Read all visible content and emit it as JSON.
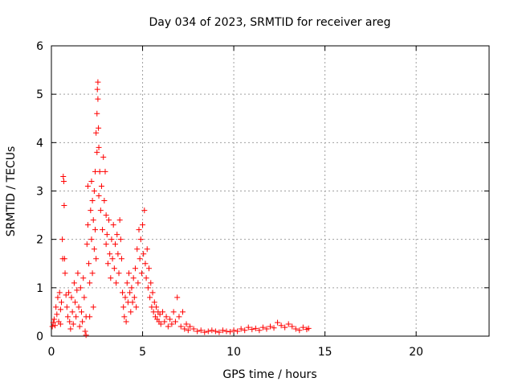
{
  "chart_data": {
    "type": "scatter",
    "title": "Day 034 of 2023, SRMTID for receiver areg",
    "xlabel": "GPS time / hours",
    "ylabel": "SRMTID / TECUs",
    "xlim": [
      0,
      24
    ],
    "ylim": [
      0,
      6
    ],
    "xticks": [
      0,
      5,
      10,
      15,
      20
    ],
    "xtick_labels": [
      "0",
      "5",
      "10",
      "15",
      "20"
    ],
    "yticks": [
      0,
      1,
      2,
      3,
      4,
      5,
      6
    ],
    "ytick_labels": [
      "0",
      "1",
      "2",
      "3",
      "4",
      "5",
      "6"
    ],
    "grid": true,
    "marker": "+",
    "colors": {
      "series": "#ff0000",
      "grid": "#a0a0a0",
      "axis": "#000000"
    },
    "series": [
      {
        "name": "SRMTID",
        "points": [
          [
            0.05,
            0.2
          ],
          [
            0.1,
            0.28
          ],
          [
            0.15,
            0.35
          ],
          [
            0.2,
            0.22
          ],
          [
            0.25,
            0.6
          ],
          [
            0.3,
            0.45
          ],
          [
            0.35,
            0.8
          ],
          [
            0.4,
            0.3
          ],
          [
            0.45,
            0.9
          ],
          [
            0.5,
            0.55
          ],
          [
            0.5,
            0.25
          ],
          [
            0.55,
            0.7
          ],
          [
            0.6,
            2.0
          ],
          [
            0.62,
            1.6
          ],
          [
            0.65,
            3.3
          ],
          [
            0.68,
            3.2
          ],
          [
            0.7,
            2.7
          ],
          [
            0.72,
            1.6
          ],
          [
            0.75,
            1.3
          ],
          [
            0.8,
            0.85
          ],
          [
            0.85,
            0.6
          ],
          [
            0.9,
            0.4
          ],
          [
            0.95,
            0.9
          ],
          [
            1.0,
            0.3
          ],
          [
            1.05,
            0.15
          ],
          [
            1.1,
            0.8
          ],
          [
            1.15,
            0.5
          ],
          [
            1.2,
            0.25
          ],
          [
            1.25,
            1.1
          ],
          [
            1.3,
            0.7
          ],
          [
            1.35,
            0.4
          ],
          [
            1.4,
            0.95
          ],
          [
            1.45,
            1.3
          ],
          [
            1.5,
            0.6
          ],
          [
            1.55,
            0.2
          ],
          [
            1.6,
            1.0
          ],
          [
            1.65,
            0.5
          ],
          [
            1.7,
            0.3
          ],
          [
            1.75,
            1.2
          ],
          [
            1.8,
            0.8
          ],
          [
            1.85,
            0.1
          ],
          [
            1.9,
            0.4
          ],
          [
            1.9,
            0.02
          ],
          [
            1.95,
            1.9
          ],
          [
            2.0,
            2.3
          ],
          [
            2.0,
            3.1
          ],
          [
            2.05,
            1.5
          ],
          [
            2.1,
            1.1
          ],
          [
            2.1,
            0.4
          ],
          [
            2.15,
            2.6
          ],
          [
            2.2,
            3.2
          ],
          [
            2.2,
            2.0
          ],
          [
            2.25,
            2.8
          ],
          [
            2.25,
            1.3
          ],
          [
            2.3,
            2.4
          ],
          [
            2.3,
            0.6
          ],
          [
            2.35,
            3.0
          ],
          [
            2.35,
            1.8
          ],
          [
            2.4,
            3.4
          ],
          [
            2.4,
            2.2
          ],
          [
            2.45,
            4.2
          ],
          [
            2.45,
            1.6
          ],
          [
            2.5,
            4.6
          ],
          [
            2.5,
            3.8
          ],
          [
            2.52,
            5.1
          ],
          [
            2.55,
            5.25
          ],
          [
            2.55,
            4.9
          ],
          [
            2.58,
            4.3
          ],
          [
            2.6,
            3.9
          ],
          [
            2.6,
            2.9
          ],
          [
            2.65,
            3.4
          ],
          [
            2.7,
            2.6
          ],
          [
            2.75,
            3.1
          ],
          [
            2.8,
            2.2
          ],
          [
            2.85,
            3.7
          ],
          [
            2.9,
            2.8
          ],
          [
            2.95,
            3.4
          ],
          [
            3.0,
            2.5
          ],
          [
            3.0,
            1.9
          ],
          [
            3.05,
            2.1
          ],
          [
            3.1,
            1.5
          ],
          [
            3.15,
            2.4
          ],
          [
            3.2,
            1.7
          ],
          [
            3.25,
            1.2
          ],
          [
            3.3,
            2.0
          ],
          [
            3.35,
            1.6
          ],
          [
            3.4,
            2.3
          ],
          [
            3.45,
            1.4
          ],
          [
            3.5,
            1.9
          ],
          [
            3.55,
            1.1
          ],
          [
            3.6,
            2.1
          ],
          [
            3.65,
            1.7
          ],
          [
            3.7,
            1.3
          ],
          [
            3.75,
            2.4
          ],
          [
            3.8,
            2.0
          ],
          [
            3.85,
            1.6
          ],
          [
            3.9,
            0.9
          ],
          [
            3.95,
            0.6
          ],
          [
            4.0,
            0.4
          ],
          [
            4.05,
            0.8
          ],
          [
            4.1,
            0.3
          ],
          [
            4.15,
            1.1
          ],
          [
            4.2,
            0.7
          ],
          [
            4.25,
            1.3
          ],
          [
            4.3,
            0.9
          ],
          [
            4.35,
            0.5
          ],
          [
            4.4,
            1.0
          ],
          [
            4.45,
            0.7
          ],
          [
            4.5,
            1.2
          ],
          [
            4.55,
            0.8
          ],
          [
            4.6,
            1.4
          ],
          [
            4.65,
            0.6
          ],
          [
            4.7,
            1.8
          ],
          [
            4.75,
            1.1
          ],
          [
            4.8,
            2.2
          ],
          [
            4.85,
            1.6
          ],
          [
            4.9,
            2.0
          ],
          [
            4.95,
            1.3
          ],
          [
            5.0,
            2.3
          ],
          [
            5.05,
            1.7
          ],
          [
            5.1,
            2.6
          ],
          [
            5.15,
            1.5
          ],
          [
            5.2,
            1.2
          ],
          [
            5.25,
            1.8
          ],
          [
            5.3,
            1.0
          ],
          [
            5.35,
            1.4
          ],
          [
            5.4,
            0.8
          ],
          [
            5.45,
            1.1
          ],
          [
            5.5,
            0.6
          ],
          [
            5.55,
            0.9
          ],
          [
            5.6,
            0.5
          ],
          [
            5.65,
            0.7
          ],
          [
            5.7,
            0.4
          ],
          [
            5.75,
            0.6
          ],
          [
            5.8,
            0.35
          ],
          [
            5.85,
            0.5
          ],
          [
            5.9,
            0.3
          ],
          [
            5.95,
            0.45
          ],
          [
            6.0,
            0.25
          ],
          [
            6.1,
            0.5
          ],
          [
            6.2,
            0.3
          ],
          [
            6.3,
            0.4
          ],
          [
            6.4,
            0.2
          ],
          [
            6.5,
            0.35
          ],
          [
            6.6,
            0.25
          ],
          [
            6.7,
            0.5
          ],
          [
            6.8,
            0.3
          ],
          [
            6.9,
            0.8
          ],
          [
            7.0,
            0.4
          ],
          [
            7.1,
            0.2
          ],
          [
            7.2,
            0.5
          ],
          [
            7.3,
            0.15
          ],
          [
            7.4,
            0.25
          ],
          [
            7.5,
            0.12
          ],
          [
            7.6,
            0.2
          ],
          [
            7.8,
            0.15
          ],
          [
            8.0,
            0.1
          ],
          [
            8.2,
            0.12
          ],
          [
            8.4,
            0.08
          ],
          [
            8.6,
            0.1
          ],
          [
            8.8,
            0.12
          ],
          [
            9.0,
            0.1
          ],
          [
            9.2,
            0.08
          ],
          [
            9.4,
            0.12
          ],
          [
            9.6,
            0.1
          ],
          [
            9.8,
            0.09
          ],
          [
            10.0,
            0.12
          ],
          [
            10.2,
            0.1
          ],
          [
            10.4,
            0.15
          ],
          [
            10.6,
            0.12
          ],
          [
            10.8,
            0.18
          ],
          [
            11.0,
            0.14
          ],
          [
            11.2,
            0.16
          ],
          [
            11.4,
            0.12
          ],
          [
            11.6,
            0.18
          ],
          [
            11.8,
            0.15
          ],
          [
            12.0,
            0.2
          ],
          [
            12.2,
            0.17
          ],
          [
            12.4,
            0.28
          ],
          [
            12.6,
            0.22
          ],
          [
            12.8,
            0.18
          ],
          [
            13.0,
            0.25
          ],
          [
            13.2,
            0.2
          ],
          [
            13.4,
            0.15
          ],
          [
            13.6,
            0.12
          ],
          [
            13.8,
            0.18
          ],
          [
            14.0,
            0.14
          ],
          [
            14.1,
            0.16
          ]
        ]
      }
    ]
  }
}
